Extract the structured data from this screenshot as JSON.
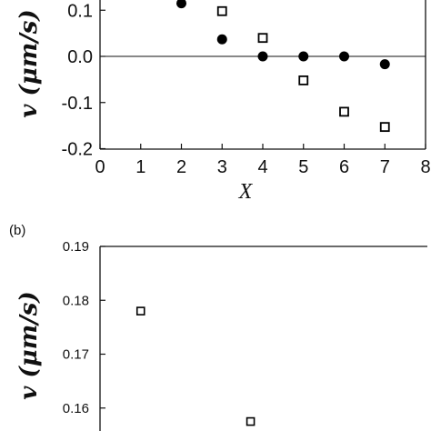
{
  "chart_data": [
    {
      "type": "scatter",
      "panel": "",
      "xlabel": "X",
      "ylabel": "v (μm/s)",
      "xlim": [
        0,
        8
      ],
      "ylim": [
        -0.2,
        0.15
      ],
      "x_ticks": [
        "0",
        "1",
        "2",
        "3",
        "4",
        "5",
        "6",
        "7",
        "8"
      ],
      "y_ticks": [
        "0.1",
        "0.0",
        "-0.1",
        "-0.2"
      ],
      "y_tick_values": [
        0.1,
        0.0,
        -0.1,
        -0.2
      ],
      "zero_line": true,
      "series": [
        {
          "marker": "filled-circle",
          "x": [
            2,
            3,
            4,
            5,
            6,
            7
          ],
          "y": [
            0.115,
            0.037,
            0.0,
            0.0,
            0.0,
            -0.017
          ]
        },
        {
          "marker": "open-square",
          "x": [
            3,
            4,
            5,
            6,
            7
          ],
          "y": [
            0.098,
            0.04,
            -0.052,
            -0.12,
            -0.153
          ]
        }
      ]
    },
    {
      "type": "scatter",
      "panel": "(b)",
      "ylabel": "v (μm/s)",
      "xlim": [
        0,
        8
      ],
      "ylim": [
        0.15,
        0.19
      ],
      "y_ticks": [
        "0.19",
        "0.18",
        "0.17",
        "0.16"
      ],
      "y_tick_values": [
        0.19,
        0.18,
        0.17,
        0.16
      ],
      "series": [
        {
          "marker": "open-square",
          "x": [
            1,
            3.7
          ],
          "y": [
            0.178,
            0.1575
          ]
        }
      ]
    }
  ]
}
